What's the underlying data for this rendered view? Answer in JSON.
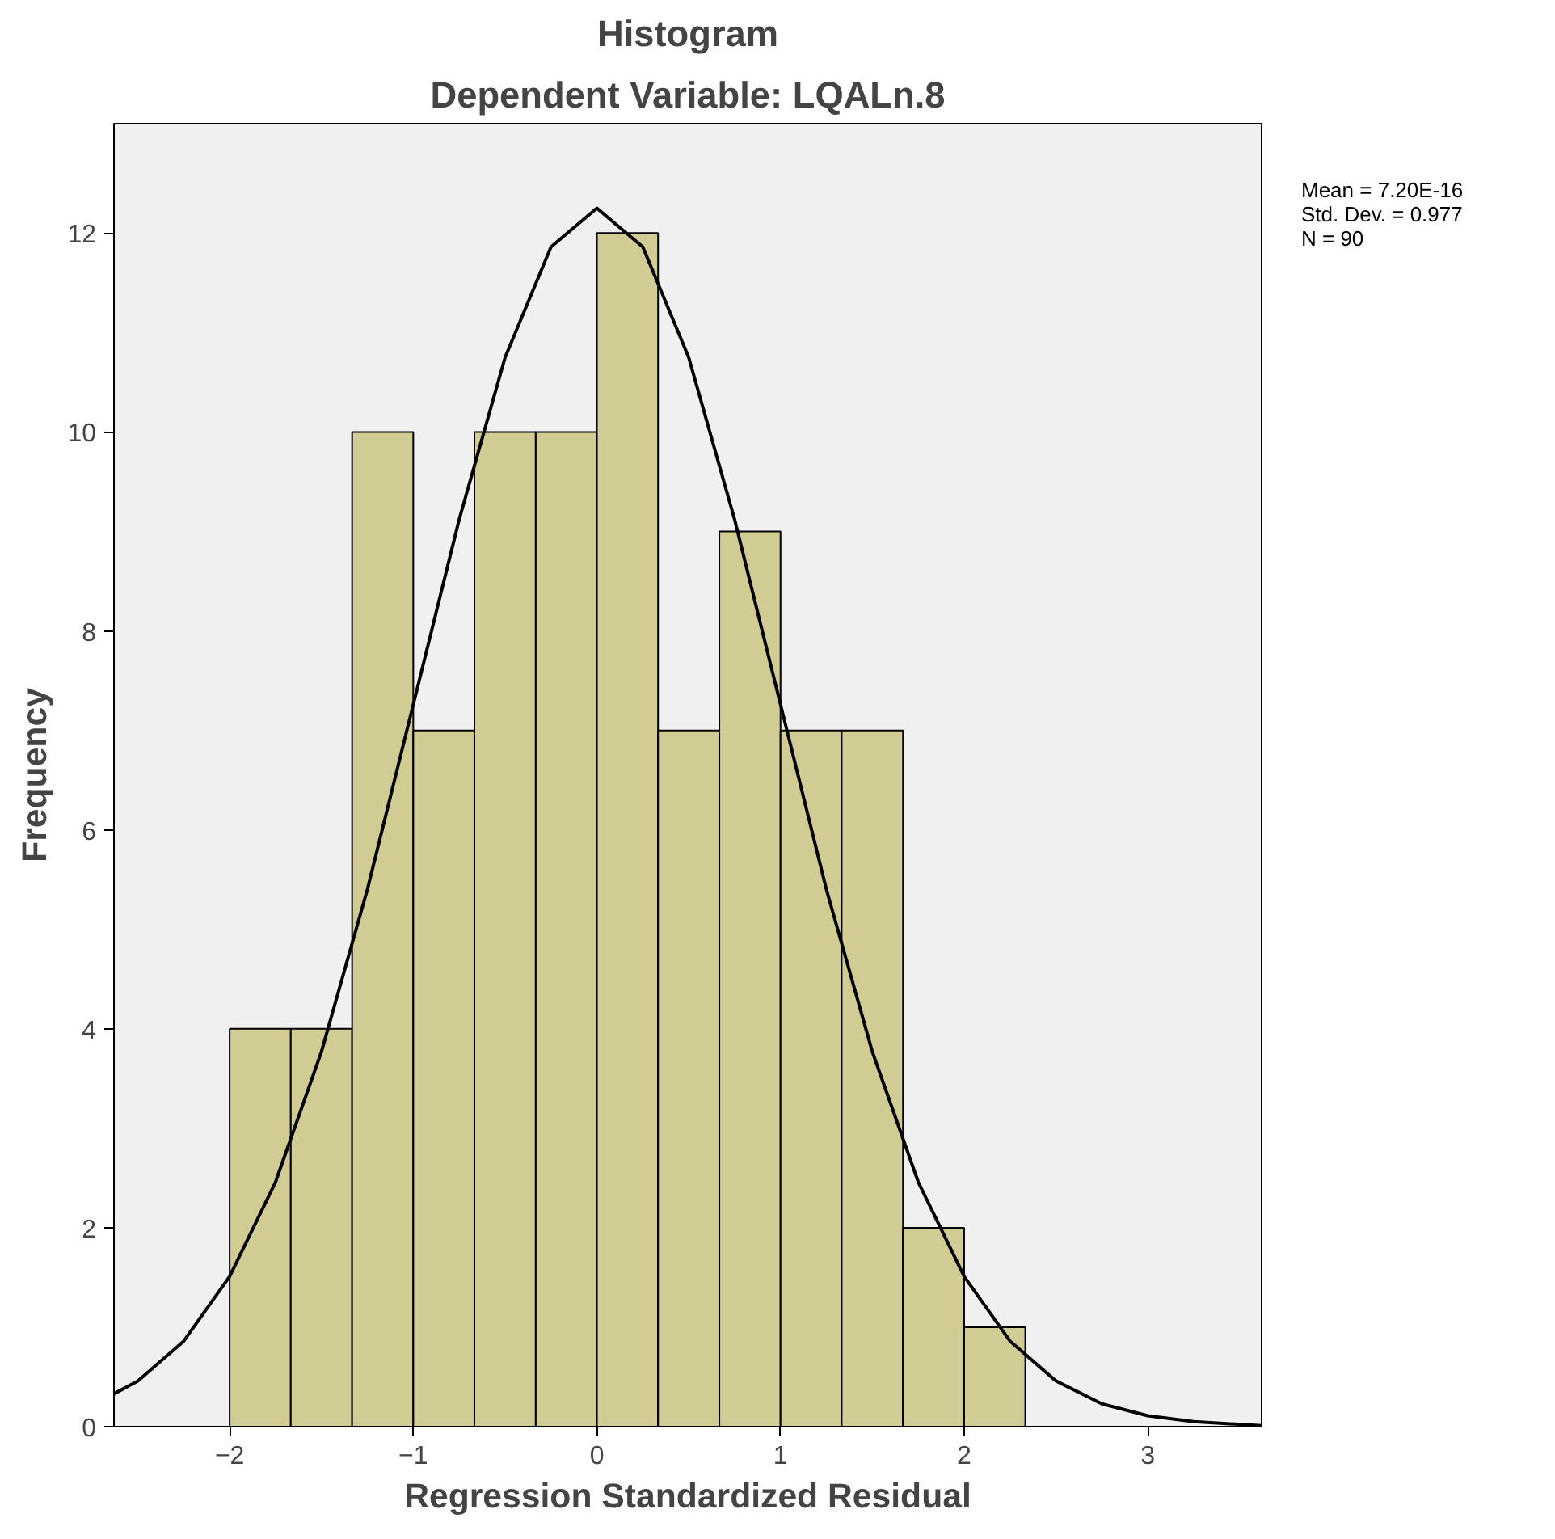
{
  "chart_data": {
    "type": "histogram",
    "title": "Histogram",
    "subtitle": "Dependent Variable: LQALn.8",
    "xlabel": "Regression Standardized Residual",
    "ylabel": "Frequency",
    "bins": [
      -2,
      -1.667,
      -1.333,
      -1,
      -0.667,
      -0.333,
      0,
      0.333,
      0.667,
      1,
      1.333,
      1.667,
      2,
      2.333
    ],
    "values": [
      4,
      4,
      10,
      7,
      10,
      10,
      12,
      7,
      9,
      7,
      7,
      2,
      1
    ],
    "color": "#d1cc93",
    "series": [
      {
        "type": "line",
        "color": "#000000",
        "x": [
          -2.63,
          -2.5,
          -2.25,
          -2,
          -1.75,
          -1.5,
          -1.25,
          -1,
          -0.75,
          -0.5,
          -0.25,
          0,
          0.25,
          0.5,
          0.75,
          1,
          1.25,
          1.5,
          1.75,
          2,
          2.25,
          2.5,
          2.75,
          3,
          3.25,
          3.62
        ],
        "values": [
          0.33,
          0.46,
          0.86,
          1.51,
          2.46,
          3.77,
          5.4,
          7.26,
          9.12,
          10.75,
          11.86,
          12.25,
          11.86,
          10.75,
          9.12,
          7.26,
          5.4,
          3.77,
          2.46,
          1.51,
          0.86,
          0.46,
          0.23,
          0.11,
          0.05,
          0.01
        ]
      }
    ],
    "xlim": [
      -2.63,
      3.62
    ],
    "ylim": [
      0,
      13.1
    ],
    "xticks": [
      -2,
      -1,
      0,
      1,
      2,
      3
    ],
    "yticks": [
      0,
      2,
      4,
      6,
      8,
      10,
      12
    ],
    "annotations": [
      "Mean = 7.20E-16",
      "Std. Dev. = 0.977",
      "N = 90"
    ],
    "grid": false,
    "legend": false
  }
}
